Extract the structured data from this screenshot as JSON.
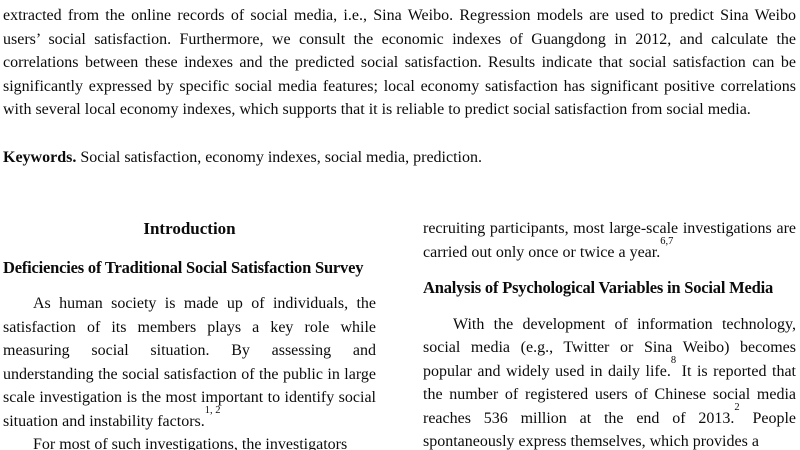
{
  "abstract": {
    "text": "extracted from the online records of social media, i.e., Sina Weibo. Regression models are used to predict Sina Weibo users’ social satisfaction. Furthermore, we consult the economic indexes of Guangdong in 2012, and calculate the correlations between these indexes and the predicted social satisfaction. Results indicate that social satisfaction can be significantly expressed by specific social media features; local economy satisfaction has significant positive correlations with several local economy indexes, which supports that it is reliable to predict social satisfaction from social media."
  },
  "keywords": {
    "label": "Keywords.",
    "text": " Social satisfaction, economy indexes, social media, prediction."
  },
  "intro": {
    "section_title": "Introduction",
    "left": {
      "heading": "Deficiencies of Traditional Social Satisfaction Survey",
      "para1": {
        "text": "As human society is made up of individuals, the satisfaction of its members plays a key role while measuring social situation. By assessing and understanding the social satisfaction of the public in large scale investigation is the most important to identify social situation and instability factors.",
        "ref": "1, 2"
      },
      "para2": {
        "text": "For most of such investigations, the investigators"
      }
    },
    "right": {
      "para0": {
        "text": "recruiting participants, most large-scale investigations are carried out only once or twice a year.",
        "ref": "6,7"
      },
      "heading": "Analysis of Psychological Variables in Social Media",
      "para1": {
        "seg1": "With the development of information technology, social media (e.g., Twitter or Sina Weibo) becomes popular and widely used in daily life.",
        "ref1": "8",
        "seg2": " It is reported that the number of registered users of Chinese social media reaches 536 million at the end of 2013.",
        "ref2": "2",
        "seg3": " People spontaneously express themselves, which provides a"
      }
    }
  }
}
